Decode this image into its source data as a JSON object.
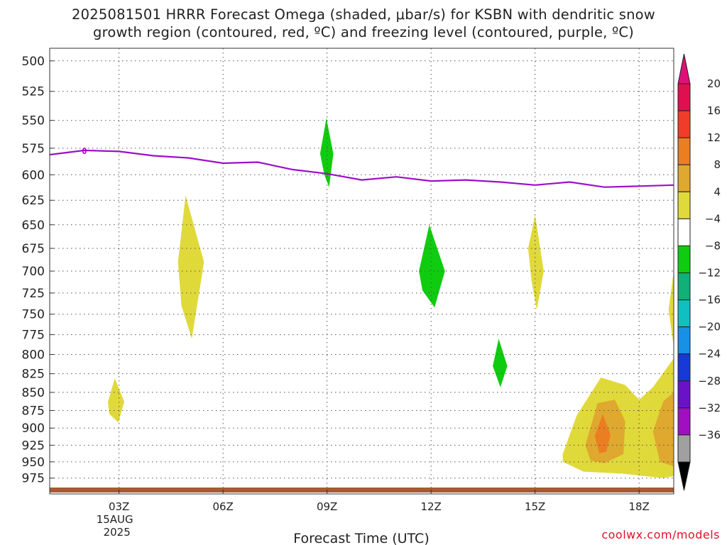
{
  "title_line1": "2025081501 HRRR Forecast Omega (shaded, μbar/s) for KSBN with dendritic snow",
  "title_line2": "growth region (contoured, red, ºC) and freezing level (contoured, purple, ºC)",
  "credit": "coolwx.com/models",
  "chart_data": {
    "type": "area",
    "title": "2025081501 HRRR Forecast Omega (shaded, μbar/s) for KSBN with dendritic snow growth region (contoured, red, ºC) and freezing level (contoured, purple, ºC)",
    "xlabel": "Forecast Time (UTC)",
    "ylabel": "",
    "x_ticks": [
      {
        "x": 3,
        "label": "03Z",
        "sub1": "15AUG",
        "sub2": "2025"
      },
      {
        "x": 6,
        "label": "06Z"
      },
      {
        "x": 9,
        "label": "09Z"
      },
      {
        "x": 12,
        "label": "12Z"
      },
      {
        "x": 15,
        "label": "15Z"
      },
      {
        "x": 18,
        "label": "18Z"
      }
    ],
    "xlim": [
      1,
      19
    ],
    "y_ticks": [
      500,
      525,
      550,
      575,
      600,
      625,
      650,
      675,
      700,
      725,
      750,
      775,
      800,
      825,
      850,
      875,
      900,
      925,
      950,
      975
    ],
    "ylim": [
      1000,
      490
    ],
    "y_scale": "log-pressure",
    "grid": true,
    "freezing_level": {
      "label": "0",
      "color": "#9b10c8",
      "points": [
        [
          1,
          581
        ],
        [
          2,
          577
        ],
        [
          3,
          578
        ],
        [
          4,
          582
        ],
        [
          5,
          584
        ],
        [
          6,
          589
        ],
        [
          7,
          588
        ],
        [
          8,
          595
        ],
        [
          9,
          599
        ],
        [
          10,
          605
        ],
        [
          11,
          602
        ],
        [
          12,
          606
        ],
        [
          13,
          605
        ],
        [
          14,
          607
        ],
        [
          15,
          610
        ],
        [
          16,
          607
        ],
        [
          17,
          612
        ],
        [
          18,
          611
        ],
        [
          19,
          610
        ]
      ]
    },
    "omega_regions": [
      {
        "level": 4,
        "color": "#e0d93a",
        "points": [
          [
            2.68,
            863
          ],
          [
            2.88,
            831
          ],
          [
            3.15,
            863
          ],
          [
            2.98,
            892
          ],
          [
            2.72,
            880
          ]
        ]
      },
      {
        "level": 4,
        "color": "#e0d93a",
        "points": [
          [
            4.7,
            690
          ],
          [
            4.92,
            620
          ],
          [
            5.45,
            690
          ],
          [
            5.1,
            780
          ],
          [
            4.8,
            740
          ]
        ]
      },
      {
        "level": -4,
        "color": "#10cc10",
        "points": [
          [
            8.8,
            580
          ],
          [
            8.98,
            548
          ],
          [
            9.18,
            580
          ],
          [
            9.06,
            612
          ],
          [
            8.92,
            600
          ]
        ]
      },
      {
        "level": -4,
        "color": "#10cc10",
        "points": [
          [
            11.65,
            700
          ],
          [
            11.95,
            650
          ],
          [
            12.4,
            700
          ],
          [
            12.1,
            742
          ],
          [
            11.75,
            722
          ]
        ]
      },
      {
        "level": 4,
        "color": "#e0d93a",
        "points": [
          [
            14.8,
            675
          ],
          [
            15.0,
            640
          ],
          [
            15.25,
            700
          ],
          [
            15.05,
            745
          ],
          [
            14.9,
            712
          ]
        ]
      },
      {
        "level": -4,
        "color": "#10cc10",
        "points": [
          [
            13.78,
            815
          ],
          [
            13.95,
            780
          ],
          [
            14.2,
            815
          ],
          [
            14.0,
            843
          ]
        ]
      },
      {
        "level": 4,
        "color": "#e0d93a",
        "points": [
          [
            15.8,
            938
          ],
          [
            16.2,
            882
          ],
          [
            16.9,
            830
          ],
          [
            17.6,
            840
          ],
          [
            18.0,
            860
          ],
          [
            18.4,
            843
          ],
          [
            19.0,
            805
          ],
          [
            19.0,
            972
          ],
          [
            18.7,
            975
          ],
          [
            17.5,
            968
          ],
          [
            16.4,
            965
          ],
          [
            15.8,
            950
          ]
        ]
      },
      {
        "level": 4,
        "color": "#e0d93a",
        "points": [
          [
            18.85,
            745
          ],
          [
            19.0,
            700
          ],
          [
            19.0,
            790
          ]
        ]
      },
      {
        "level": 8,
        "color": "#dfa82e",
        "points": [
          [
            16.45,
            925
          ],
          [
            16.8,
            865
          ],
          [
            17.3,
            860
          ],
          [
            17.6,
            890
          ],
          [
            17.55,
            938
          ],
          [
            17.0,
            952
          ],
          [
            16.6,
            948
          ]
        ]
      },
      {
        "level": 8,
        "color": "#dfa82e",
        "points": [
          [
            18.4,
            905
          ],
          [
            18.7,
            862
          ],
          [
            19.0,
            850
          ],
          [
            19.0,
            957
          ],
          [
            18.6,
            950
          ]
        ]
      },
      {
        "level": 12,
        "color": "#ec7e22",
        "points": [
          [
            16.72,
            912
          ],
          [
            16.95,
            880
          ],
          [
            17.18,
            910
          ],
          [
            17.05,
            935
          ],
          [
            16.85,
            937
          ]
        ]
      }
    ],
    "ground": {
      "color": "#a65a35",
      "label": "surface"
    },
    "colorbar": {
      "labels": [
        "20",
        "16",
        "12",
        "8",
        "4",
        "−4",
        "−8",
        "−12",
        "−16",
        "−20",
        "−24",
        "−28",
        "−32",
        "−36"
      ],
      "colors": [
        "#e01050",
        "#f03c28",
        "#ec7e22",
        "#dfa82e",
        "#e0d93a",
        "#ffffff",
        "#10cc10",
        "#10b077",
        "#10c0c0",
        "#1890e6",
        "#1838d8",
        "#6a12c8",
        "#a010c0",
        "#a0a0a0"
      ],
      "top_arrow_color": "#e0107a",
      "bottom_arrow_color": "#000000"
    }
  }
}
